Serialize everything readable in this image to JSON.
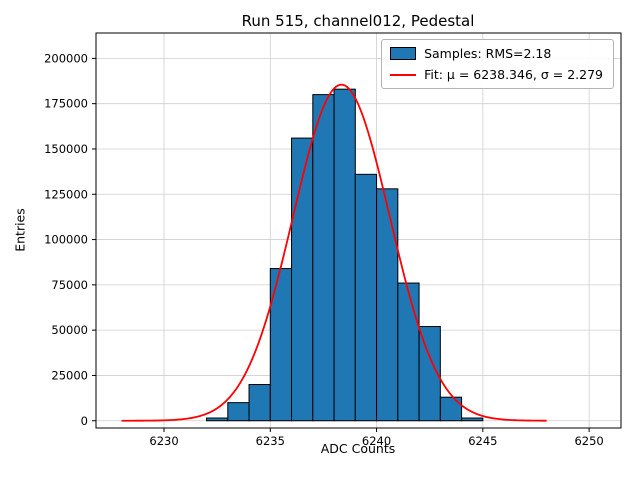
{
  "figure": {
    "title": "Run 515, channel012, Pedestal",
    "xlabel": "ADC Counts",
    "ylabel": "Entries"
  },
  "legend": {
    "samples_label": "Samples: RMS=2.18",
    "fit_label": "Fit: μ = 6238.346, σ = 2.279"
  },
  "chart_data": {
    "type": "bar",
    "subtype": "histogram",
    "title": "Run 515, channel012, Pedestal",
    "xlabel": "ADC Counts",
    "ylabel": "Entries",
    "bin_left_edges": [
      6232,
      6233,
      6234,
      6235,
      6236,
      6237,
      6238,
      6239,
      6240,
      6241,
      6242,
      6243,
      6244
    ],
    "bin_width": 1,
    "values": [
      1500,
      10000,
      20000,
      84000,
      156000,
      180000,
      183000,
      136000,
      128000,
      76000,
      52000,
      13000,
      1500
    ],
    "xlim": [
      6226.8,
      6251.5
    ],
    "ylim": [
      -4000,
      214000
    ],
    "xticks": [
      6230,
      6235,
      6240,
      6245,
      6250
    ],
    "yticks": [
      0,
      25000,
      50000,
      75000,
      100000,
      125000,
      150000,
      175000,
      200000
    ],
    "grid": true,
    "legend_position": "upper right",
    "legend_entries": [
      "Samples: RMS=2.18",
      "Fit: μ = 6238.346, σ = 2.279"
    ],
    "fit": {
      "type": "gaussian",
      "mu": 6238.346,
      "sigma": 2.279,
      "amplitude": 185500,
      "x_range": [
        6228,
        6248
      ]
    },
    "rms": 2.18,
    "colors": {
      "bar_fill": "#1f77b4",
      "bar_edge": "#000000",
      "fit_line": "#ff0000",
      "grid": "#cfcfcf",
      "frame": "#000000"
    }
  }
}
